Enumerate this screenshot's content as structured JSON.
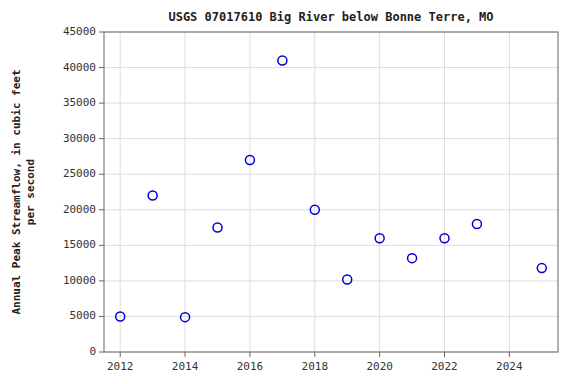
{
  "chart_data": {
    "type": "scatter",
    "title": "USGS 07017610 Big River below Bonne Terre, MO",
    "ylabel": [
      "Annual Peak Streamflow, in cubic feet",
      "per second"
    ],
    "x": [
      2012,
      2013,
      2014,
      2015,
      2016,
      2017,
      2018,
      2019,
      2020,
      2021,
      2022,
      2023,
      2025
    ],
    "values": [
      5000,
      22000,
      4900,
      17500,
      27000,
      41000,
      20000,
      10200,
      16000,
      13200,
      16000,
      18000,
      11800
    ],
    "color": "#0000cc",
    "marker": "circle",
    "xlim": [
      2011.5,
      2025.5
    ],
    "ylim": [
      0,
      45000
    ],
    "xticks": [
      2012,
      2014,
      2016,
      2018,
      2020,
      2022,
      2024
    ],
    "yticks": [
      0,
      5000,
      10000,
      15000,
      20000,
      25000,
      30000,
      35000,
      40000,
      45000
    ],
    "grid": true
  }
}
